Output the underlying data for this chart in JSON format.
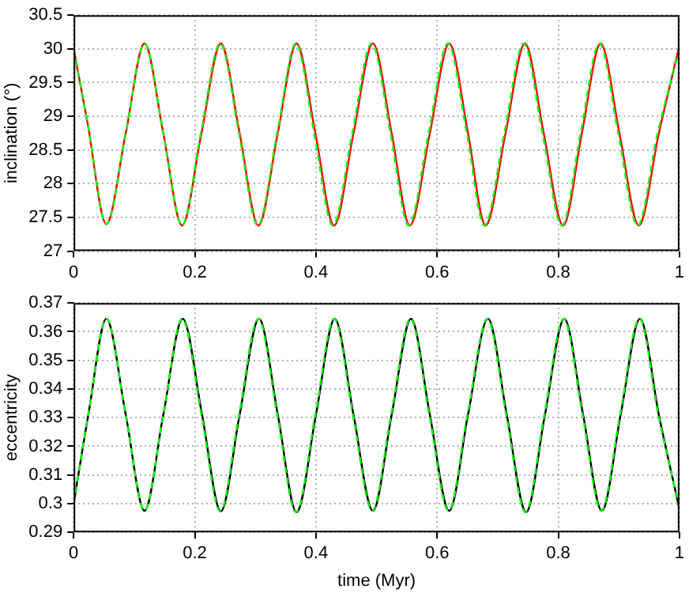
{
  "chart_data": [
    {
      "type": "line",
      "ylabel": "inclination (°)",
      "xlim": [
        0,
        1
      ],
      "xticks": [
        0,
        0.2,
        0.4,
        0.6,
        0.8,
        1
      ],
      "ylim": [
        27,
        30.5
      ],
      "yticks": [
        27,
        27.5,
        28,
        28.5,
        29,
        29.5,
        30,
        30.5
      ],
      "grid": true,
      "legend": false,
      "x": [
        0,
        0.023,
        0.054,
        0.086,
        0.117,
        0.148,
        0.179,
        0.211,
        0.243,
        0.274,
        0.305,
        0.337,
        0.368,
        0.399,
        0.43,
        0.462,
        0.494,
        0.525,
        0.555,
        0.588,
        0.62,
        0.651,
        0.68,
        0.713,
        0.745,
        0.776,
        0.808,
        0.839,
        0.87,
        0.901,
        0.933,
        0.966,
        1
      ],
      "series": [
        {
          "color": "#ff0000",
          "values": [
            30.0,
            28.9,
            27.4,
            28.75,
            30.08,
            28.75,
            27.38,
            28.75,
            30.08,
            28.75,
            27.38,
            28.75,
            30.08,
            28.75,
            27.38,
            28.75,
            30.08,
            28.75,
            27.38,
            28.75,
            30.08,
            28.75,
            27.38,
            28.75,
            30.08,
            28.75,
            27.38,
            28.75,
            30.08,
            28.75,
            27.38,
            28.75,
            30.05
          ]
        },
        {
          "color": "#00ff00",
          "line_style": "dashed",
          "x": [
            0,
            0.023,
            0.054,
            0.086,
            0.117,
            0.148,
            0.179,
            0.21,
            0.242,
            0.273,
            0.304,
            0.336,
            0.367,
            0.397,
            0.428,
            0.46,
            0.492,
            0.523,
            0.553,
            0.586,
            0.618,
            0.649,
            0.678,
            0.711,
            0.743,
            0.774,
            0.806,
            0.837,
            0.868,
            0.899,
            0.931,
            0.964,
            1
          ],
          "values": [
            30.0,
            28.9,
            27.4,
            28.75,
            30.08,
            28.75,
            27.38,
            28.75,
            30.08,
            28.75,
            27.38,
            28.75,
            30.08,
            28.75,
            27.38,
            28.75,
            30.08,
            28.75,
            27.38,
            28.75,
            30.08,
            28.75,
            27.38,
            28.75,
            30.08,
            28.75,
            27.38,
            28.75,
            30.08,
            28.75,
            27.38,
            28.75,
            30.0
          ]
        }
      ]
    },
    {
      "type": "line",
      "xlabel": "time (Myr)",
      "ylabel": "eccentricity",
      "xlim": [
        0,
        1
      ],
      "xticks": [
        0,
        0.2,
        0.4,
        0.6,
        0.8,
        1
      ],
      "ylim": [
        0.29,
        0.37
      ],
      "yticks": [
        0.29,
        0.3,
        0.31,
        0.32,
        0.33,
        0.34,
        0.35,
        0.36,
        0.37
      ],
      "grid": true,
      "legend": false,
      "x": [
        0,
        0.025,
        0.054,
        0.086,
        0.117,
        0.148,
        0.18,
        0.212,
        0.243,
        0.274,
        0.306,
        0.337,
        0.368,
        0.4,
        0.431,
        0.462,
        0.494,
        0.525,
        0.557,
        0.588,
        0.62,
        0.651,
        0.684,
        0.715,
        0.747,
        0.778,
        0.81,
        0.841,
        0.872,
        0.903,
        0.935,
        0.966,
        1
      ],
      "series": [
        {
          "color": "#000000",
          "values": [
            0.3,
            0.332,
            0.3645,
            0.331,
            0.2975,
            0.331,
            0.3645,
            0.331,
            0.2973,
            0.331,
            0.3645,
            0.331,
            0.297,
            0.331,
            0.3645,
            0.331,
            0.2975,
            0.331,
            0.3645,
            0.331,
            0.2975,
            0.331,
            0.3645,
            0.331,
            0.297,
            0.331,
            0.3645,
            0.331,
            0.2975,
            0.331,
            0.3645,
            0.331,
            0.298
          ]
        },
        {
          "color": "#00ff00",
          "line_style": "dashed",
          "x": [
            0,
            0.025,
            0.054,
            0.086,
            0.117,
            0.148,
            0.179,
            0.211,
            0.242,
            0.273,
            0.305,
            0.336,
            0.367,
            0.399,
            0.43,
            0.461,
            0.493,
            0.524,
            0.556,
            0.587,
            0.619,
            0.65,
            0.683,
            0.714,
            0.746,
            0.777,
            0.809,
            0.84,
            0.871,
            0.902,
            0.934,
            0.965,
            1
          ],
          "values": [
            0.3,
            0.332,
            0.3645,
            0.331,
            0.2975,
            0.331,
            0.3645,
            0.331,
            0.2973,
            0.331,
            0.3645,
            0.331,
            0.297,
            0.331,
            0.3645,
            0.331,
            0.2975,
            0.331,
            0.3645,
            0.331,
            0.2975,
            0.331,
            0.3645,
            0.331,
            0.297,
            0.331,
            0.3645,
            0.331,
            0.2975,
            0.331,
            0.3645,
            0.331,
            0.2985
          ]
        }
      ]
    }
  ]
}
